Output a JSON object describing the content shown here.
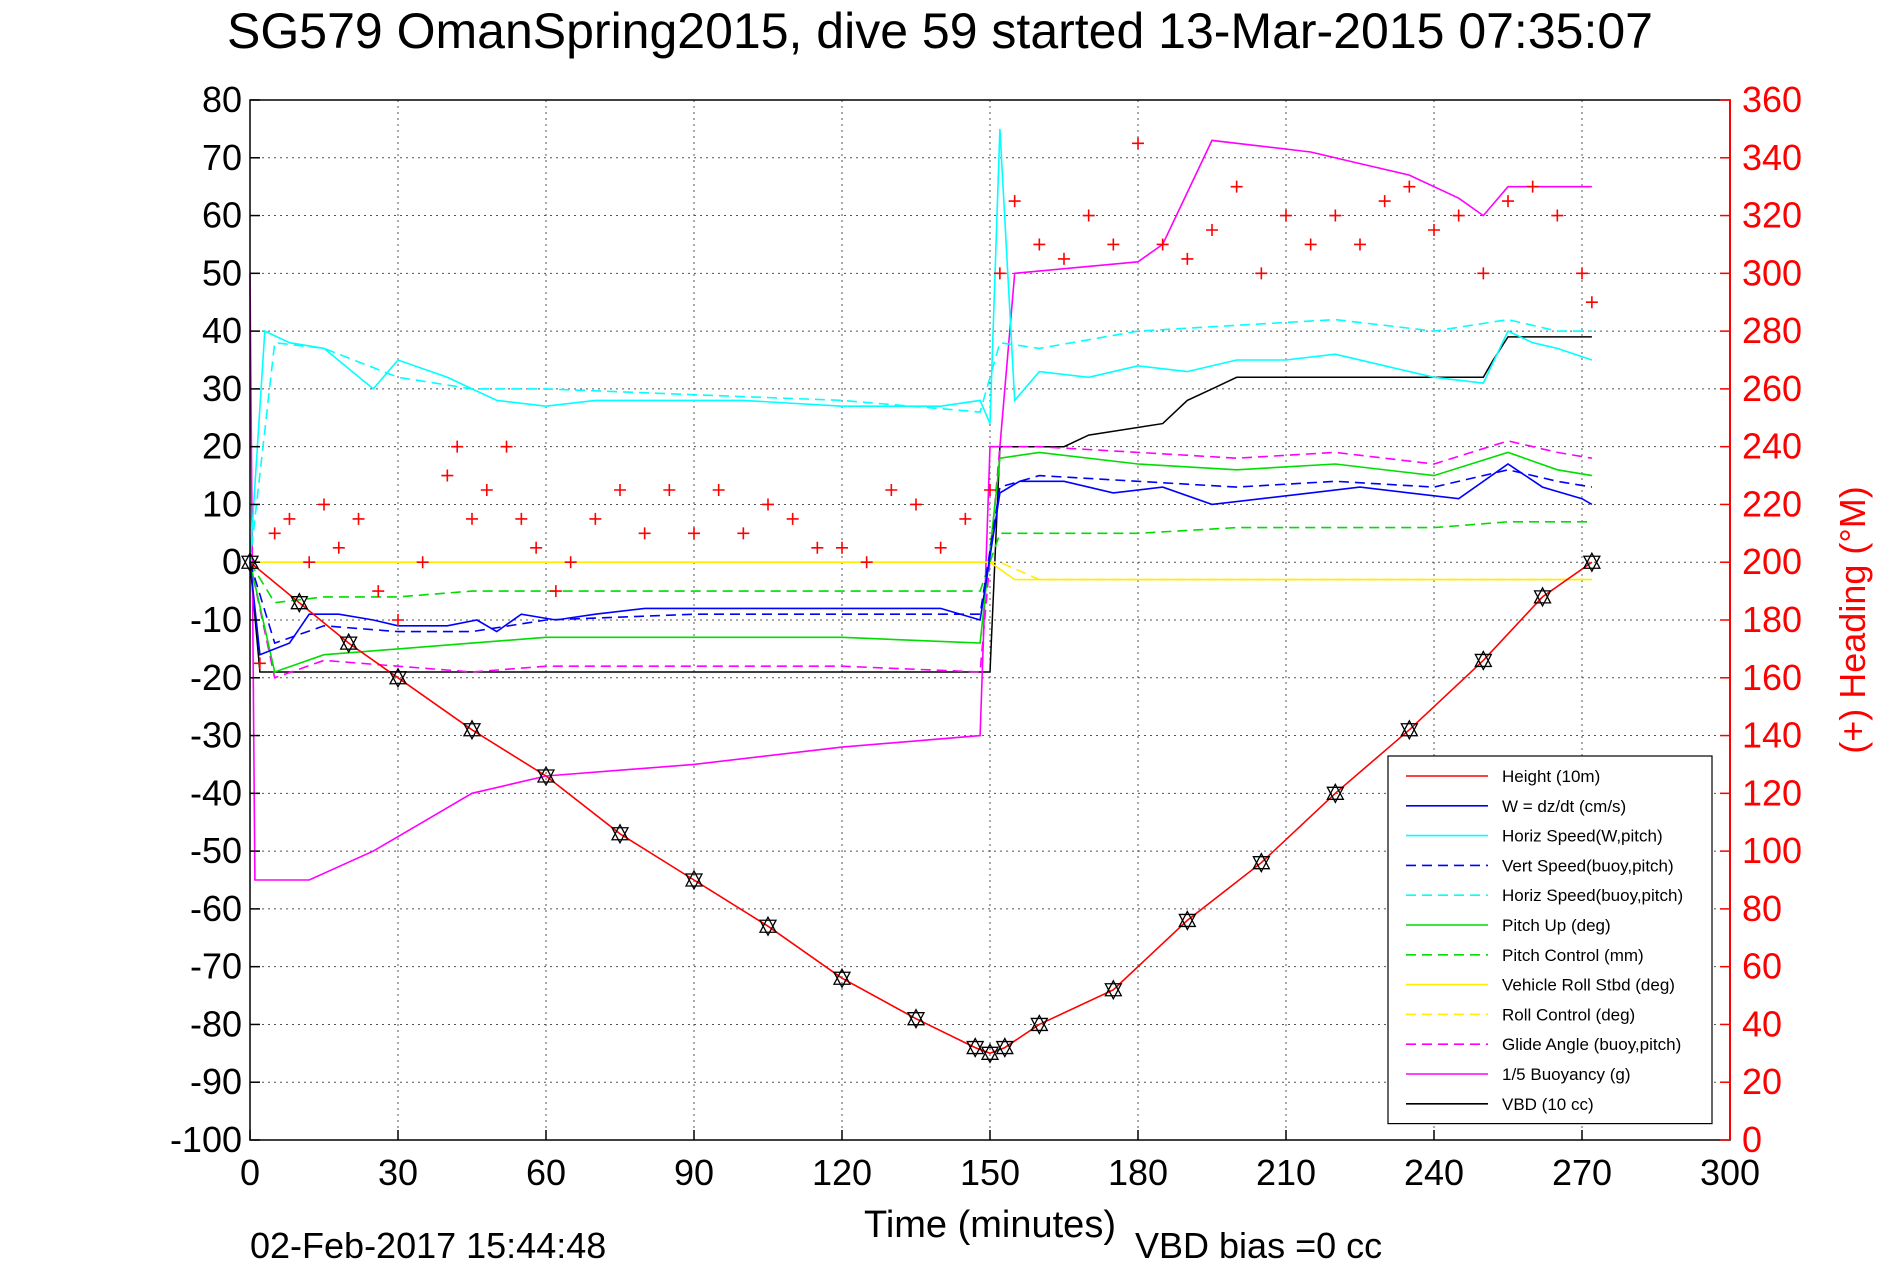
{
  "chart_data": {
    "type": "line",
    "title": "SG579 OmanSpring2015, dive 59 started 13-Mar-2015 07:35:07",
    "xlabel": "Time (minutes)",
    "ylabel_right": "(+) Heading (°M)",
    "xlim": [
      0,
      300
    ],
    "ylim": [
      -100,
      80
    ],
    "ylim_right": [
      0,
      360
    ],
    "x_ticks": [
      "0",
      "30",
      "60",
      "90",
      "120",
      "150",
      "180",
      "210",
      "240",
      "270",
      "300"
    ],
    "y_ticks": [
      "80",
      "70",
      "60",
      "50",
      "40",
      "30",
      "20",
      "10",
      "0",
      "-10",
      "-20",
      "-30",
      "-40",
      "-50",
      "-60",
      "-70",
      "-80",
      "-90",
      "-100"
    ],
    "y_right_ticks": [
      "360",
      "340",
      "320",
      "300",
      "280",
      "260",
      "240",
      "220",
      "200",
      "180",
      "160",
      "140",
      "120",
      "100",
      "80",
      "60",
      "40",
      "20",
      "0"
    ],
    "grid": true,
    "legend_position": "bottom-right",
    "timestamp": "02-Feb-2017 15:44:48",
    "vbd_bias": "VBD bias =0 cc",
    "series": [
      {
        "name": "Height (10m)",
        "color": "#ff0000",
        "dash": "solid",
        "x": [
          0,
          10,
          20,
          30,
          45,
          60,
          75,
          90,
          105,
          120,
          135,
          147,
          150,
          153,
          160,
          175,
          190,
          205,
          220,
          235,
          250,
          262,
          272
        ],
        "y": [
          0,
          -7,
          -14,
          -20,
          -29,
          -37,
          -47,
          -55,
          -63,
          -72,
          -79,
          -84,
          -85,
          -84,
          -80,
          -74,
          -62,
          -52,
          -40,
          -29,
          -17,
          -6,
          0
        ]
      },
      {
        "name": "W = dz/dt (cm/s)",
        "color": "#0000ff",
        "dash": "solid",
        "x": [
          0,
          2,
          5,
          8,
          12,
          18,
          25,
          30,
          40,
          46,
          50,
          55,
          62,
          70,
          80,
          100,
          120,
          140,
          148,
          152,
          156,
          165,
          175,
          185,
          195,
          205,
          215,
          225,
          235,
          245,
          255,
          262,
          270,
          272
        ],
        "y": [
          0,
          -16,
          -15,
          -14,
          -9,
          -9,
          -10,
          -11,
          -11,
          -10,
          -12,
          -9,
          -10,
          -9,
          -8,
          -8,
          -8,
          -8,
          -10,
          12,
          14,
          14,
          12,
          13,
          10,
          11,
          12,
          13,
          12,
          11,
          17,
          13,
          11,
          10
        ]
      },
      {
        "name": "Horiz Speed(W,pitch)",
        "color": "#00ffff",
        "dash": "solid",
        "x": [
          0,
          3,
          8,
          15,
          25,
          30,
          40,
          50,
          60,
          70,
          80,
          100,
          120,
          140,
          148,
          150,
          152,
          155,
          160,
          170,
          180,
          190,
          200,
          210,
          220,
          230,
          240,
          250,
          255,
          260,
          265,
          272
        ],
        "y": [
          0,
          40,
          38,
          37,
          30,
          35,
          32,
          28,
          27,
          28,
          28,
          28,
          27,
          27,
          28,
          24,
          75,
          28,
          33,
          32,
          34,
          33,
          35,
          35,
          36,
          34,
          32,
          31,
          40,
          38,
          37,
          35
        ]
      },
      {
        "name": "Vert Speed(buoy,pitch)",
        "color": "#0000ff",
        "dash": "dashed",
        "x": [
          0,
          5,
          15,
          30,
          45,
          60,
          90,
          120,
          148,
          152,
          160,
          180,
          200,
          220,
          240,
          255,
          265,
          272
        ],
        "y": [
          0,
          -14,
          -11,
          -12,
          -12,
          -10,
          -9,
          -9,
          -9,
          13,
          15,
          14,
          13,
          14,
          13,
          16,
          14,
          13
        ]
      },
      {
        "name": "Horiz Speed(buoy,pitch)",
        "color": "#00ffff",
        "dash": "dashed",
        "x": [
          0,
          5,
          15,
          30,
          45,
          60,
          90,
          120,
          148,
          152,
          160,
          180,
          200,
          220,
          240,
          255,
          265,
          272
        ],
        "y": [
          0,
          38,
          37,
          32,
          30,
          30,
          29,
          28,
          26,
          38,
          37,
          40,
          41,
          42,
          40,
          42,
          40,
          40
        ]
      },
      {
        "name": "Pitch Up (deg)",
        "color": "#00dd00",
        "dash": "solid",
        "x": [
          0,
          5,
          15,
          30,
          45,
          60,
          90,
          120,
          148,
          152,
          160,
          180,
          200,
          220,
          240,
          255,
          265,
          272
        ],
        "y": [
          0,
          -19,
          -16,
          -15,
          -14,
          -13,
          -13,
          -13,
          -14,
          18,
          19,
          17,
          16,
          17,
          15,
          19,
          16,
          15
        ]
      },
      {
        "name": "Pitch Control (mm)",
        "color": "#00dd00",
        "dash": "dashed",
        "x": [
          0,
          5,
          15,
          30,
          45,
          60,
          90,
          120,
          148,
          152,
          160,
          180,
          200,
          220,
          240,
          255,
          265,
          272
        ],
        "y": [
          0,
          -7,
          -6,
          -6,
          -5,
          -5,
          -5,
          -5,
          -5,
          5,
          5,
          5,
          6,
          6,
          6,
          7,
          7,
          7
        ]
      },
      {
        "name": "Vehicle Roll Stbd (deg)",
        "color": "#ffee00",
        "dash": "solid",
        "x": [
          0,
          10,
          20,
          30,
          40,
          50,
          60,
          70,
          80,
          90,
          100,
          110,
          120,
          130,
          140,
          148,
          150,
          155,
          160,
          180,
          200,
          220,
          240,
          260,
          272
        ],
        "y": [
          0,
          0,
          0,
          0,
          0,
          0,
          0,
          0,
          0,
          0,
          0,
          0,
          0,
          0,
          0,
          0,
          0,
          -3,
          -3,
          -3,
          -3,
          -3,
          -3,
          -3,
          -3
        ]
      },
      {
        "name": "Roll Control (deg)",
        "color": "#ffee00",
        "dash": "dashed",
        "x": [
          0,
          20,
          40,
          60,
          80,
          100,
          120,
          148,
          152,
          160,
          180,
          200,
          220,
          240,
          260,
          272
        ],
        "y": [
          0,
          0,
          0,
          0,
          0,
          0,
          0,
          0,
          0,
          -3,
          -3,
          -3,
          -3,
          -3,
          -3,
          -3
        ]
      },
      {
        "name": "Glide Angle (buoy,pitch)",
        "color": "#ff00ff",
        "dash": "dashed",
        "x": [
          0,
          5,
          15,
          30,
          45,
          60,
          90,
          120,
          148,
          152,
          160,
          180,
          200,
          220,
          240,
          255,
          265,
          272
        ],
        "y": [
          0,
          -20,
          -17,
          -18,
          -19,
          -18,
          -18,
          -18,
          -19,
          20,
          20,
          19,
          18,
          19,
          17,
          21,
          19,
          18
        ]
      },
      {
        "name": "1/5 Buoyancy (g)",
        "color": "#ff00ff",
        "dash": "solid",
        "x": [
          0,
          1,
          2,
          12,
          25,
          35,
          45,
          60,
          90,
          120,
          148,
          150,
          152,
          155,
          180,
          185,
          195,
          205,
          215,
          225,
          235,
          245,
          250,
          255,
          265,
          272
        ],
        "y": [
          50,
          -55,
          -55,
          -55,
          -50,
          -45,
          -40,
          -37,
          -35,
          -32,
          -30,
          20,
          20,
          50,
          52,
          55,
          73,
          72,
          71,
          69,
          67,
          63,
          60,
          65,
          65,
          65
        ]
      },
      {
        "name": "VBD (10 cc)",
        "color": "#000000",
        "dash": "solid",
        "x": [
          0,
          2,
          148,
          150,
          152,
          165,
          170,
          185,
          190,
          195,
          200,
          220,
          240,
          250,
          252,
          255,
          272
        ],
        "y": [
          0,
          -19,
          -19,
          -19,
          20,
          20,
          22,
          24,
          28,
          30,
          32,
          32,
          32,
          32,
          35,
          39,
          39
        ]
      },
      {
        "name": "(+) Heading",
        "color": "#ff0000",
        "dash": "markers",
        "x": [
          2,
          5,
          8,
          12,
          15,
          18,
          22,
          26,
          30,
          35,
          40,
          42,
          45,
          48,
          52,
          55,
          58,
          62,
          65,
          70,
          75,
          80,
          85,
          90,
          95,
          100,
          105,
          110,
          115,
          120,
          125,
          130,
          135,
          140,
          145,
          150,
          152,
          155,
          160,
          165,
          170,
          175,
          180,
          185,
          190,
          195,
          200,
          205,
          210,
          215,
          220,
          225,
          230,
          235,
          240,
          245,
          250,
          255,
          260,
          265,
          270,
          272
        ],
        "y_right": [
          165,
          210,
          215,
          200,
          220,
          205,
          215,
          190,
          180,
          200,
          230,
          240,
          215,
          225,
          240,
          215,
          205,
          190,
          200,
          215,
          225,
          210,
          225,
          210,
          225,
          210,
          220,
          215,
          205,
          205,
          200,
          225,
          220,
          205,
          215,
          225,
          300,
          325,
          310,
          305,
          320,
          310,
          345,
          310,
          305,
          315,
          330,
          300,
          320,
          310,
          320,
          310,
          325,
          330,
          315,
          320,
          300,
          325,
          330,
          320,
          300,
          290
        ]
      }
    ]
  }
}
